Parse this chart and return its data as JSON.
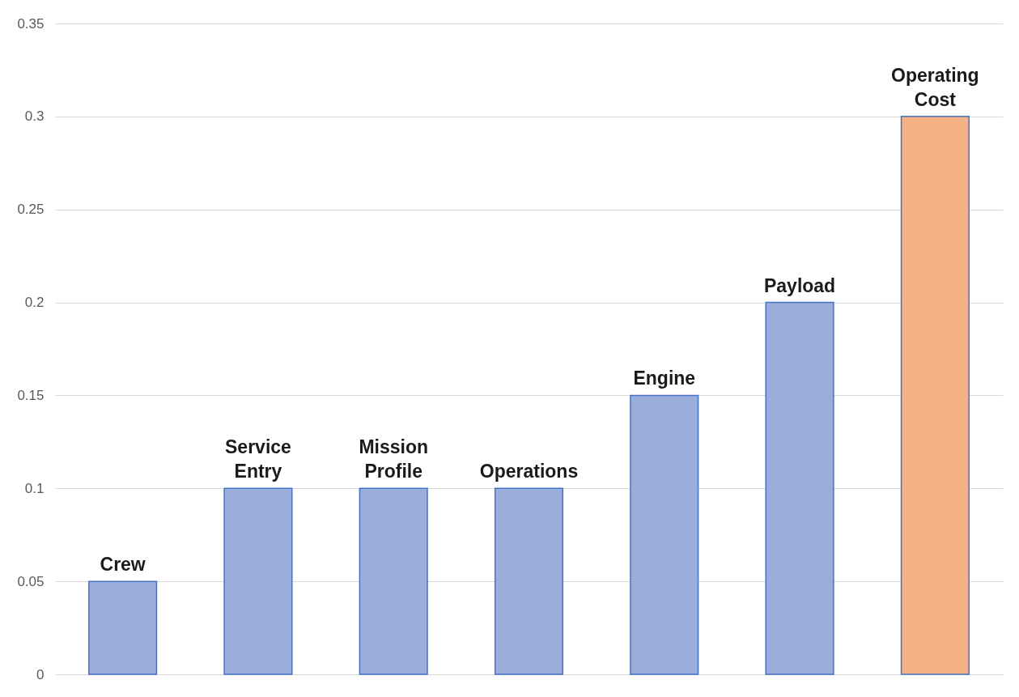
{
  "chart_data": {
    "type": "bar",
    "categories": [
      "Crew",
      "Service Entry",
      "Mission Profile",
      "Operations",
      "Engine",
      "Payload",
      "Operating Cost"
    ],
    "values": [
      0.05,
      0.1,
      0.1,
      0.1,
      0.15,
      0.2,
      0.3
    ],
    "colors": [
      "#9aaedc",
      "#9aaedc",
      "#9aaedc",
      "#9aaedc",
      "#9aaedc",
      "#9aaedc",
      "#f4b183"
    ],
    "ylim": [
      0,
      0.35
    ],
    "yticks": [
      0,
      0.05,
      0.1,
      0.15,
      0.2,
      0.25,
      0.3,
      0.35
    ],
    "grid": "y",
    "tick_labels": "y"
  }
}
